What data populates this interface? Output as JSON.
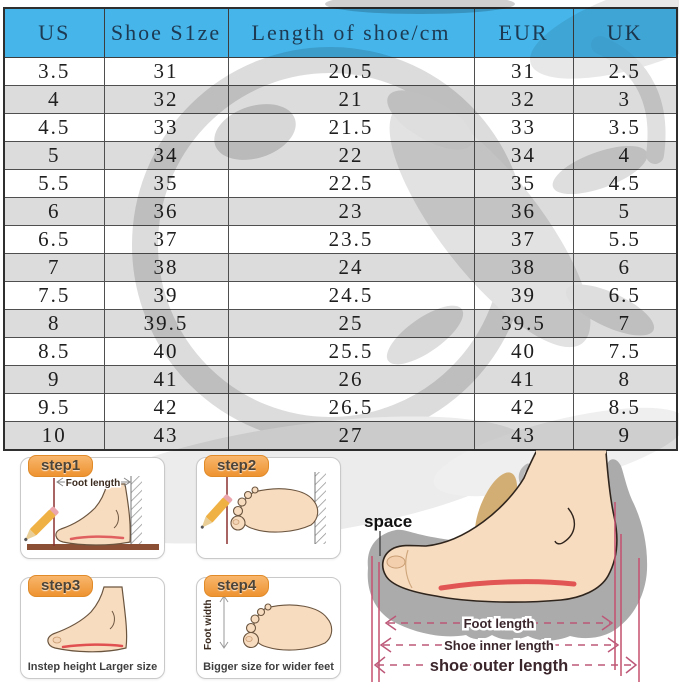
{
  "size_table": {
    "columns": [
      "US",
      "Shoe S1ze",
      "Length of shoe/cm",
      "EUR",
      "UK"
    ],
    "rows": [
      [
        "3.5",
        "31",
        "20.5",
        "31",
        "2.5"
      ],
      [
        "4",
        "32",
        "21",
        "32",
        "3"
      ],
      [
        "4.5",
        "33",
        "21.5",
        "33",
        "3.5"
      ],
      [
        "5",
        "34",
        "22",
        "34",
        "4"
      ],
      [
        "5.5",
        "35",
        "22.5",
        "35",
        "4.5"
      ],
      [
        "6",
        "36",
        "23",
        "36",
        "5"
      ],
      [
        "6.5",
        "37",
        "23.5",
        "37",
        "5.5"
      ],
      [
        "7",
        "38",
        "24",
        "38",
        "6"
      ],
      [
        "7.5",
        "39",
        "24.5",
        "39",
        "6.5"
      ],
      [
        "8",
        "39.5",
        "25",
        "39.5",
        "7"
      ],
      [
        "8.5",
        "40",
        "25.5",
        "40",
        "7.5"
      ],
      [
        "9",
        "41",
        "26",
        "41",
        "8"
      ],
      [
        "9.5",
        "42",
        "26.5",
        "42",
        "8.5"
      ],
      [
        "10",
        "43",
        "27",
        "43",
        "9"
      ]
    ]
  },
  "guide": {
    "steps": [
      {
        "tab": "step1",
        "annotation": "Foot length",
        "caption": ""
      },
      {
        "tab": "step2",
        "annotation": "",
        "caption": ""
      },
      {
        "tab": "step3",
        "annotation": "",
        "caption": "Instep height Larger size"
      },
      {
        "tab": "step4",
        "annotation": "Foot width",
        "caption": "Bigger size for wider feet"
      }
    ],
    "fit_diagram": {
      "space_label": "space",
      "measurements": [
        "Foot length",
        "Shoe inner length",
        "shoe outer length"
      ]
    }
  },
  "colors": {
    "header_bg": "#45b5ea",
    "header_text": "#1d3a52",
    "row_alt_bg": "#dcdcdc",
    "grid_border": "#4f4f4f",
    "step_tab_orange": "#f3a04c",
    "skin": "#f8dcc0",
    "sole_gray": "#ababab",
    "tongue_tan": "#d3ae74",
    "insole_red": "#e25555",
    "measure_pink": "#bd5878",
    "floor_brown": "#8a4f35"
  }
}
